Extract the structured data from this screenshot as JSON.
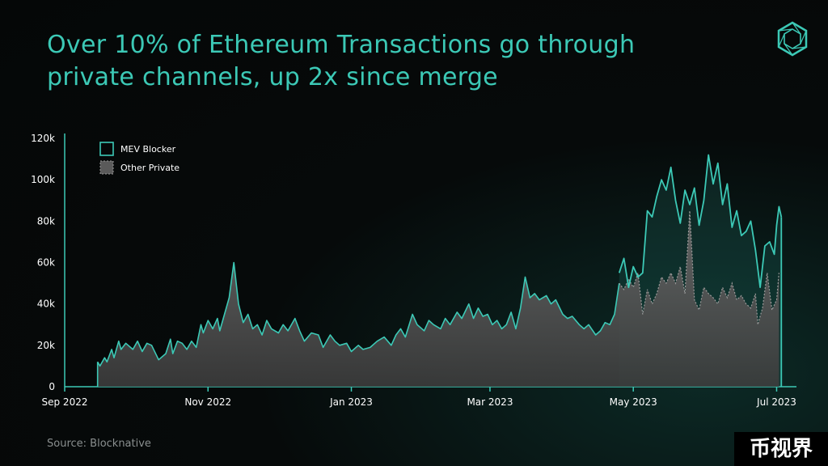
{
  "title_line1": "Over 10% of Ethereum Transactions go through",
  "title_line2": "private channels, up 2x since merge",
  "source": "Source: Blocknative",
  "watermark": "币视界",
  "logo_icon": "hexagon-logo-icon",
  "colors": {
    "accent": "#3cc9b6",
    "other_private_fill": "#5a5a5a",
    "other_private_line": "#9a9a9a"
  },
  "chart_data": {
    "type": "area",
    "title": "",
    "xlabel": "",
    "ylabel": "",
    "ylim": [
      0,
      120000
    ],
    "yticks": [
      0,
      20000,
      40000,
      60000,
      80000,
      100000,
      120000
    ],
    "ytick_labels": [
      "0",
      "20k",
      "40k",
      "60k",
      "80k",
      "100k",
      "120k"
    ],
    "xlim": [
      "2022-09-01",
      "2023-07-06"
    ],
    "xticks": [
      "2022-09-01",
      "2022-11-01",
      "2023-01-01",
      "2023-03-01",
      "2023-05-01",
      "2023-07-01"
    ],
    "xtick_labels": [
      "Sep 2022",
      "Nov 2022",
      "Jan 2023",
      "Mar 2023",
      "May 2023",
      "Jul 2023"
    ],
    "legend": [
      "MEV Blocker",
      "Other Private"
    ],
    "legend_position": "top-left",
    "grid": false,
    "series": [
      {
        "name": "Other Private",
        "points": [
          [
            "2022-09-15",
            12000
          ],
          [
            "2022-09-16",
            10000
          ],
          [
            "2022-09-18",
            14000
          ],
          [
            "2022-09-19",
            12000
          ],
          [
            "2022-09-21",
            18000
          ],
          [
            "2022-09-22",
            14000
          ],
          [
            "2022-09-24",
            22000
          ],
          [
            "2022-09-25",
            18000
          ],
          [
            "2022-09-27",
            21000
          ],
          [
            "2022-09-28",
            20000
          ],
          [
            "2022-09-30",
            18000
          ],
          [
            "2022-10-02",
            22000
          ],
          [
            "2022-10-04",
            17000
          ],
          [
            "2022-10-06",
            21000
          ],
          [
            "2022-10-08",
            20000
          ],
          [
            "2022-10-11",
            13000
          ],
          [
            "2022-10-14",
            16000
          ],
          [
            "2022-10-16",
            23000
          ],
          [
            "2022-10-17",
            16000
          ],
          [
            "2022-10-19",
            22000
          ],
          [
            "2022-10-21",
            21000
          ],
          [
            "2022-10-23",
            18000
          ],
          [
            "2022-10-25",
            22000
          ],
          [
            "2022-10-27",
            19000
          ],
          [
            "2022-10-29",
            30000
          ],
          [
            "2022-10-30",
            26000
          ],
          [
            "2022-11-01",
            32000
          ],
          [
            "2022-11-03",
            28000
          ],
          [
            "2022-11-05",
            33000
          ],
          [
            "2022-11-06",
            27000
          ],
          [
            "2022-11-08",
            35000
          ],
          [
            "2022-11-10",
            43000
          ],
          [
            "2022-11-12",
            60000
          ],
          [
            "2022-11-14",
            40000
          ],
          [
            "2022-11-16",
            31000
          ],
          [
            "2022-11-18",
            35000
          ],
          [
            "2022-11-20",
            28000
          ],
          [
            "2022-11-22",
            30000
          ],
          [
            "2022-11-24",
            25000
          ],
          [
            "2022-11-26",
            32000
          ],
          [
            "2022-11-28",
            28000
          ],
          [
            "2022-12-01",
            26000
          ],
          [
            "2022-12-03",
            30000
          ],
          [
            "2022-12-05",
            27000
          ],
          [
            "2022-12-08",
            33000
          ],
          [
            "2022-12-10",
            27000
          ],
          [
            "2022-12-12",
            22000
          ],
          [
            "2022-12-15",
            26000
          ],
          [
            "2022-12-18",
            25000
          ],
          [
            "2022-12-20",
            19000
          ],
          [
            "2022-12-23",
            25000
          ],
          [
            "2022-12-25",
            22000
          ],
          [
            "2022-12-27",
            20000
          ],
          [
            "2022-12-30",
            21000
          ],
          [
            "2023-01-01",
            17000
          ],
          [
            "2023-01-04",
            20000
          ],
          [
            "2023-01-06",
            18000
          ],
          [
            "2023-01-09",
            19000
          ],
          [
            "2023-01-12",
            22000
          ],
          [
            "2023-01-15",
            24000
          ],
          [
            "2023-01-18",
            20000
          ],
          [
            "2023-01-20",
            25000
          ],
          [
            "2023-01-22",
            28000
          ],
          [
            "2023-01-24",
            24000
          ],
          [
            "2023-01-27",
            35000
          ],
          [
            "2023-01-29",
            30000
          ],
          [
            "2023-02-01",
            27000
          ],
          [
            "2023-02-03",
            32000
          ],
          [
            "2023-02-05",
            30000
          ],
          [
            "2023-02-08",
            28000
          ],
          [
            "2023-02-10",
            33000
          ],
          [
            "2023-02-12",
            30000
          ],
          [
            "2023-02-15",
            36000
          ],
          [
            "2023-02-17",
            33000
          ],
          [
            "2023-02-20",
            40000
          ],
          [
            "2023-02-22",
            33000
          ],
          [
            "2023-02-24",
            38000
          ],
          [
            "2023-02-26",
            34000
          ],
          [
            "2023-02-28",
            35000
          ],
          [
            "2023-03-02",
            30000
          ],
          [
            "2023-03-04",
            32000
          ],
          [
            "2023-03-06",
            28000
          ],
          [
            "2023-03-08",
            30000
          ],
          [
            "2023-03-10",
            36000
          ],
          [
            "2023-03-12",
            28000
          ],
          [
            "2023-03-14",
            38000
          ],
          [
            "2023-03-16",
            53000
          ],
          [
            "2023-03-18",
            43000
          ],
          [
            "2023-03-20",
            45000
          ],
          [
            "2023-03-22",
            42000
          ],
          [
            "2023-03-25",
            44000
          ],
          [
            "2023-03-27",
            40000
          ],
          [
            "2023-03-29",
            42000
          ],
          [
            "2023-04-01",
            35000
          ],
          [
            "2023-04-03",
            33000
          ],
          [
            "2023-04-05",
            34000
          ],
          [
            "2023-04-08",
            30000
          ],
          [
            "2023-04-10",
            28000
          ],
          [
            "2023-04-12",
            30000
          ],
          [
            "2023-04-15",
            25000
          ],
          [
            "2023-04-17",
            27000
          ],
          [
            "2023-04-19",
            31000
          ],
          [
            "2023-04-21",
            30000
          ],
          [
            "2023-04-23",
            35000
          ],
          [
            "2023-04-25",
            50000
          ],
          [
            "2023-04-27",
            47000
          ],
          [
            "2023-04-29",
            52000
          ],
          [
            "2023-05-01",
            48000
          ],
          [
            "2023-05-03",
            55000
          ],
          [
            "2023-05-05",
            35000
          ],
          [
            "2023-05-07",
            47000
          ],
          [
            "2023-05-09",
            40000
          ],
          [
            "2023-05-11",
            45000
          ],
          [
            "2023-05-13",
            53000
          ],
          [
            "2023-05-15",
            50000
          ],
          [
            "2023-05-17",
            55000
          ],
          [
            "2023-05-19",
            50000
          ],
          [
            "2023-05-21",
            58000
          ],
          [
            "2023-05-23",
            45000
          ],
          [
            "2023-05-25",
            85000
          ],
          [
            "2023-05-27",
            42000
          ],
          [
            "2023-05-29",
            37000
          ],
          [
            "2023-05-31",
            48000
          ],
          [
            "2023-06-02",
            45000
          ],
          [
            "2023-06-04",
            43000
          ],
          [
            "2023-06-06",
            40000
          ],
          [
            "2023-06-08",
            48000
          ],
          [
            "2023-06-10",
            43000
          ],
          [
            "2023-06-12",
            50000
          ],
          [
            "2023-06-14",
            42000
          ],
          [
            "2023-06-16",
            44000
          ],
          [
            "2023-06-18",
            40000
          ],
          [
            "2023-06-20",
            38000
          ],
          [
            "2023-06-22",
            45000
          ],
          [
            "2023-06-23",
            30000
          ],
          [
            "2023-06-25",
            38000
          ],
          [
            "2023-06-27",
            55000
          ],
          [
            "2023-06-29",
            37000
          ],
          [
            "2023-07-01",
            42000
          ],
          [
            "2023-07-02",
            55000
          ]
        ]
      },
      {
        "name": "MEV Blocker",
        "points": [
          [
            "2023-04-25",
            55000
          ],
          [
            "2023-04-27",
            62000
          ],
          [
            "2023-04-29",
            48000
          ],
          [
            "2023-05-01",
            58000
          ],
          [
            "2023-05-03",
            53000
          ],
          [
            "2023-05-05",
            55000
          ],
          [
            "2023-05-07",
            85000
          ],
          [
            "2023-05-09",
            82000
          ],
          [
            "2023-05-11",
            92000
          ],
          [
            "2023-05-13",
            100000
          ],
          [
            "2023-05-15",
            95000
          ],
          [
            "2023-05-17",
            106000
          ],
          [
            "2023-05-19",
            90000
          ],
          [
            "2023-05-21",
            79000
          ],
          [
            "2023-05-23",
            95000
          ],
          [
            "2023-05-25",
            88000
          ],
          [
            "2023-05-27",
            96000
          ],
          [
            "2023-05-29",
            78000
          ],
          [
            "2023-05-31",
            90000
          ],
          [
            "2023-06-02",
            112000
          ],
          [
            "2023-06-04",
            98000
          ],
          [
            "2023-06-06",
            108000
          ],
          [
            "2023-06-08",
            88000
          ],
          [
            "2023-06-10",
            98000
          ],
          [
            "2023-06-12",
            77000
          ],
          [
            "2023-06-14",
            85000
          ],
          [
            "2023-06-16",
            73000
          ],
          [
            "2023-06-18",
            75000
          ],
          [
            "2023-06-20",
            80000
          ],
          [
            "2023-06-22",
            66000
          ],
          [
            "2023-06-24",
            48000
          ],
          [
            "2023-06-26",
            68000
          ],
          [
            "2023-06-28",
            70000
          ],
          [
            "2023-06-30",
            64000
          ],
          [
            "2023-07-01",
            78000
          ],
          [
            "2023-07-02",
            87000
          ],
          [
            "2023-07-03",
            82000
          ]
        ]
      }
    ]
  }
}
